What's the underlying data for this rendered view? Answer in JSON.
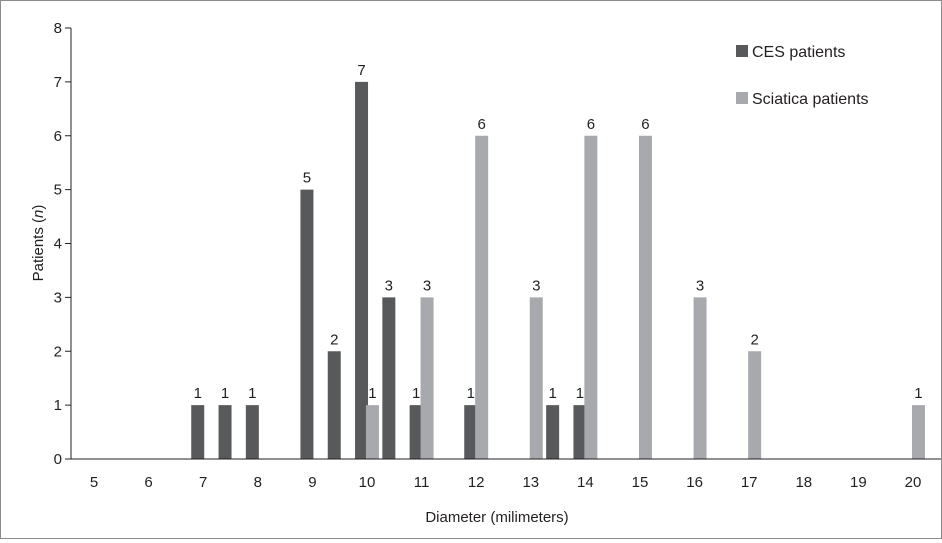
{
  "chart_data": {
    "type": "bar",
    "xlabel": "Diameter (milimeters)",
    "ylabel_prefix": "Patients (",
    "ylabel_italic": "n",
    "ylabel_suffix": ")",
    "ylim": [
      0,
      8
    ],
    "yticks": [
      0,
      1,
      2,
      3,
      4,
      5,
      6,
      7,
      8
    ],
    "xlim": [
      5,
      20
    ],
    "xticks": [
      5,
      6,
      7,
      8,
      9,
      10,
      11,
      12,
      13,
      14,
      15,
      16,
      17,
      18,
      19,
      20
    ],
    "grid": false,
    "legend_position": "top-right",
    "series": [
      {
        "name": "CES patients",
        "color": "#58595b",
        "points": [
          {
            "x": 6.9,
            "y": 1
          },
          {
            "x": 7.4,
            "y": 1
          },
          {
            "x": 7.9,
            "y": 1
          },
          {
            "x": 8.9,
            "y": 5
          },
          {
            "x": 9.4,
            "y": 2
          },
          {
            "x": 9.9,
            "y": 7
          },
          {
            "x": 10.4,
            "y": 3
          },
          {
            "x": 10.9,
            "y": 1
          },
          {
            "x": 11.9,
            "y": 1
          },
          {
            "x": 13.4,
            "y": 1
          },
          {
            "x": 13.9,
            "y": 1
          }
        ]
      },
      {
        "name": "Sciatica patients",
        "color": "#a7a9ac",
        "points": [
          {
            "x": 10.1,
            "y": 1
          },
          {
            "x": 11.1,
            "y": 3
          },
          {
            "x": 12.1,
            "y": 6
          },
          {
            "x": 13.1,
            "y": 3
          },
          {
            "x": 14.1,
            "y": 6
          },
          {
            "x": 15.1,
            "y": 6
          },
          {
            "x": 16.1,
            "y": 3
          },
          {
            "x": 17.1,
            "y": 2
          },
          {
            "x": 20.1,
            "y": 1
          }
        ]
      }
    ]
  }
}
